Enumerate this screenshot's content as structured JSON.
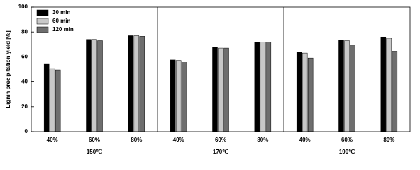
{
  "chart_data": {
    "type": "bar",
    "ylabel": "Lignin precipitation yield [%]",
    "ylim": [
      0,
      100
    ],
    "yticks": [
      0,
      20,
      40,
      60,
      80,
      100
    ],
    "categories": [
      "40%",
      "60%",
      "80%",
      "40%",
      "60%",
      "80%",
      "40%",
      "60%",
      "80%"
    ],
    "groups": [
      "150℃",
      "170℃",
      "190℃"
    ],
    "legend": "upper left",
    "series": [
      {
        "name": "30 min",
        "color": "#000000",
        "values": [
          54.5,
          74,
          77,
          58,
          68,
          72,
          64,
          73.5,
          76
        ]
      },
      {
        "name": "60 min",
        "color": "#c8c8c8",
        "values": [
          50.5,
          74,
          77,
          57,
          67,
          72,
          63,
          73,
          75
        ]
      },
      {
        "name": "120 min",
        "color": "#6e6e6e",
        "values": [
          49.4,
          73,
          76.5,
          56,
          67,
          72,
          59,
          69,
          64.5
        ]
      }
    ]
  }
}
